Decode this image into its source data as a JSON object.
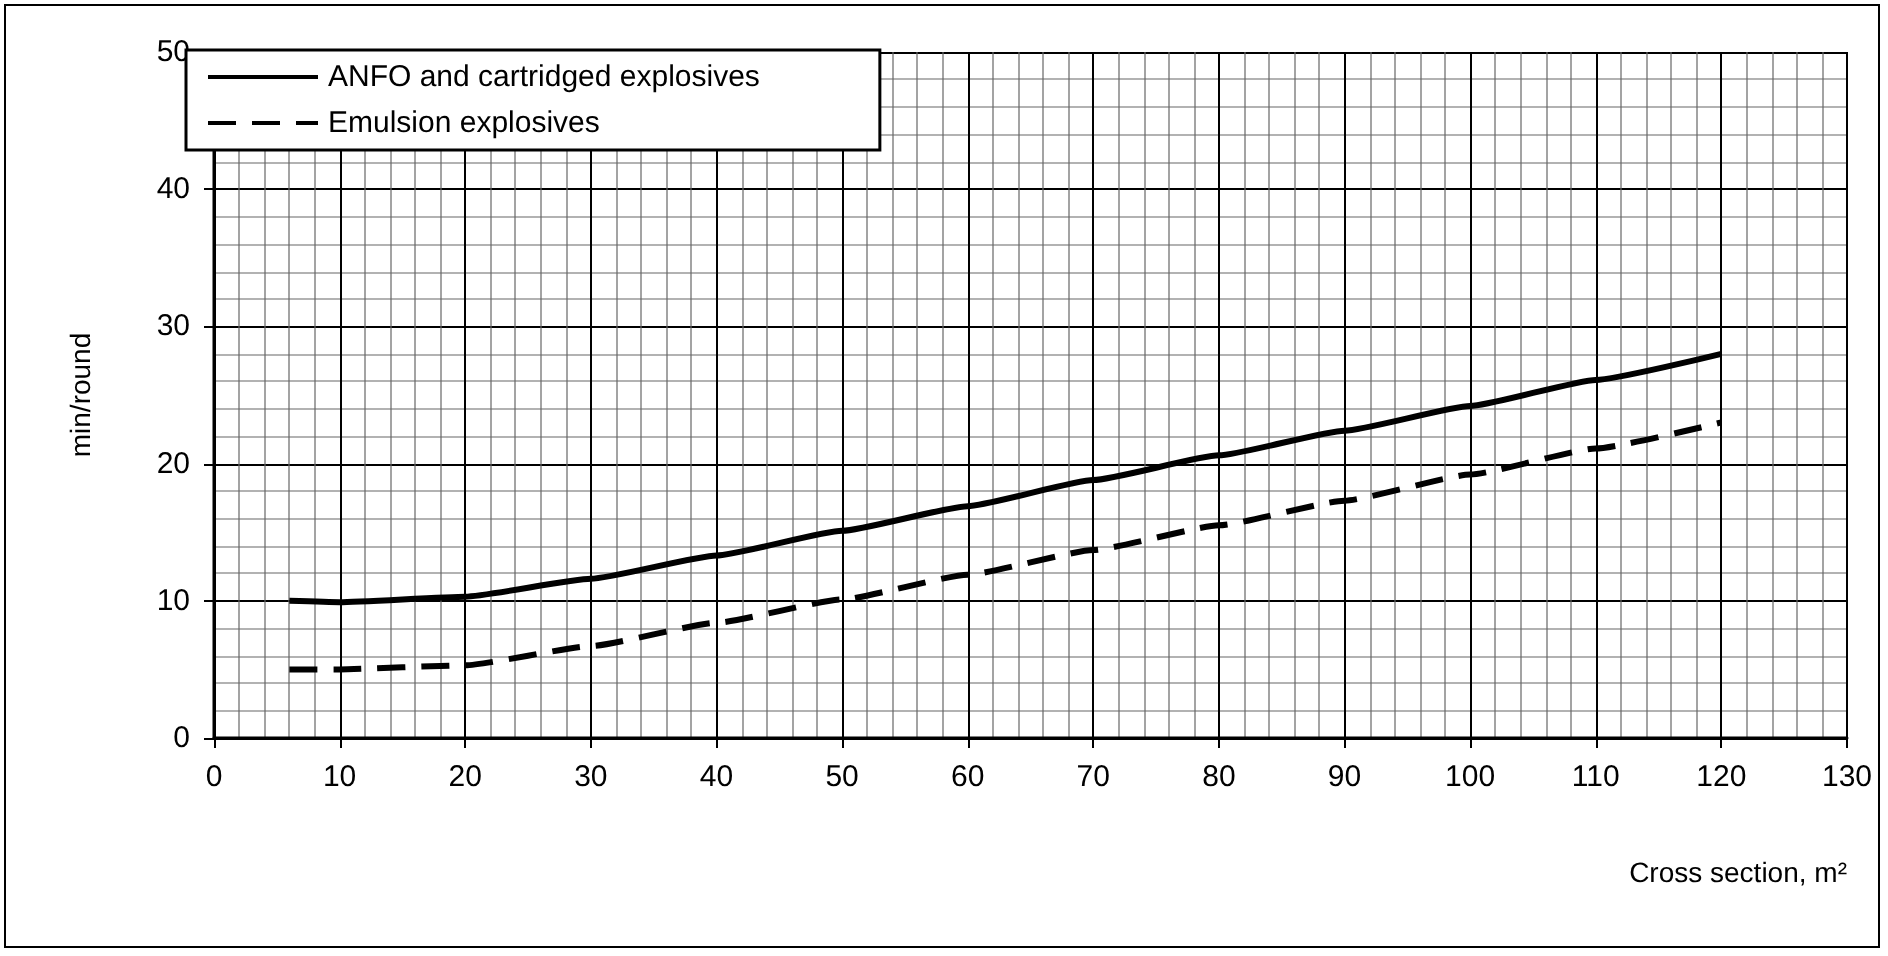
{
  "chart_data": {
    "type": "line",
    "xlabel": "Cross section, m²",
    "ylabel": "min/round",
    "xlim": [
      0,
      130
    ],
    "xticks": [
      0,
      10,
      20,
      30,
      40,
      50,
      60,
      70,
      80,
      90,
      100,
      110,
      120,
      130
    ],
    "ylim": [
      0,
      50
    ],
    "yticks": [
      0,
      10,
      20,
      30,
      40,
      50
    ],
    "grid": true,
    "legend": "top left",
    "marker": "none",
    "x": [
      6,
      10,
      20,
      30,
      40,
      50,
      60,
      70,
      80,
      90,
      100,
      110,
      120
    ],
    "series": [
      {
        "name": "ANFO and cartridged explosives",
        "color": "#000000",
        "line_style": "solid",
        "values": [
          10,
          9.9,
          10.3,
          11.6,
          13.3,
          15.1,
          16.9,
          18.8,
          20.6,
          22.4,
          24.2,
          26.1,
          28
        ]
      },
      {
        "name": "Emulsion explosives",
        "color": "#000000",
        "line_style": "dashed",
        "values": [
          5,
          5,
          5.3,
          6.7,
          8.4,
          10.1,
          11.9,
          13.7,
          15.5,
          17.3,
          19.2,
          21.1,
          23
        ]
      }
    ]
  }
}
